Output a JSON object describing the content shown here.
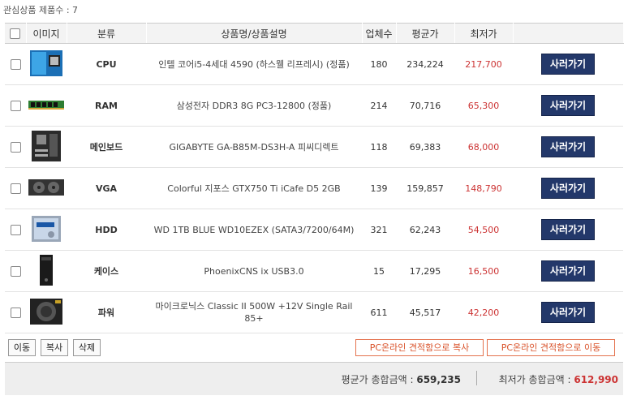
{
  "header": {
    "count_label": "관심상품 제품수 : 7"
  },
  "columns": [
    "이미지",
    "분류",
    "상품명/상품설명",
    "업체수",
    "평균가",
    "최저가"
  ],
  "rows": [
    {
      "icon": "cpu-box-image",
      "category": "CPU",
      "name": "인텔 코어i5-4세대 4590 (하스웰 리프레시) (정품)",
      "vendors": "180",
      "avg": "234,224",
      "low": "217,700",
      "buy": "사러가기"
    },
    {
      "icon": "ram-stick-image",
      "category": "RAM",
      "name": "삼성전자 DDR3 8G PC3-12800 (정품)",
      "vendors": "214",
      "avg": "70,716",
      "low": "65,300",
      "buy": "사러가기"
    },
    {
      "icon": "motherboard-image",
      "category": "메인보드",
      "name": "GIGABYTE GA-B85M-DS3H-A 피씨디렉트",
      "vendors": "118",
      "avg": "69,383",
      "low": "68,000",
      "buy": "사러가기"
    },
    {
      "icon": "graphics-card-image",
      "category": "VGA",
      "name": "Colorful 지포스 GTX750 Ti iCafe D5 2GB",
      "vendors": "139",
      "avg": "159,857",
      "low": "148,790",
      "buy": "사러가기"
    },
    {
      "icon": "hard-disk-image",
      "category": "HDD",
      "name": "WD 1TB BLUE WD10EZEX (SATA3/7200/64M)",
      "vendors": "321",
      "avg": "62,243",
      "low": "54,500",
      "buy": "사러가기"
    },
    {
      "icon": "pc-case-image",
      "category": "케이스",
      "name": "PhoenixCNS ix USB3.0",
      "vendors": "15",
      "avg": "17,295",
      "low": "16,500",
      "buy": "사러가기"
    },
    {
      "icon": "power-supply-image",
      "category": "파워",
      "name": "마이크로닉스 Classic II 500W +12V Single Rail 85+",
      "vendors": "611",
      "avg": "45,517",
      "low": "42,200",
      "buy": "사러가기"
    }
  ],
  "actions": {
    "move": "이동",
    "copy": "복사",
    "delete": "삭제",
    "copy_quote": "PC온라인 견적함으로 복사",
    "move_quote": "PC온라인 견적함으로 이동"
  },
  "summary": {
    "avg_label": "평균가 총합금액 :",
    "avg_total": "659,235",
    "low_label": "최저가 총합금액 :",
    "low_total": "612,990"
  },
  "colors": {
    "buy_button": "#23386a",
    "low_price": "#cc3333",
    "quote_button": "#d9522a"
  }
}
